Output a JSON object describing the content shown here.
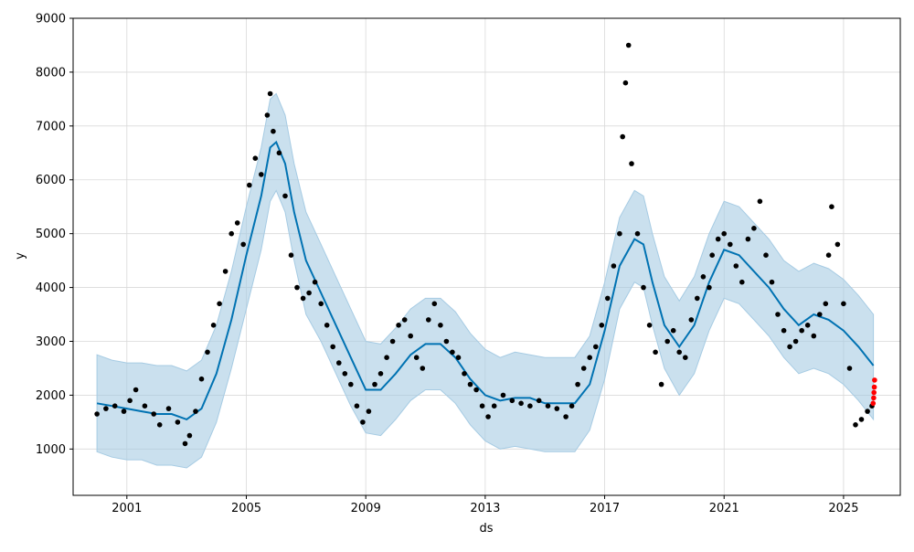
{
  "chart_data": {
    "type": "scatter",
    "title": "",
    "xlabel": "ds",
    "ylabel": "y",
    "xlim": [
      1999.2,
      2026.9
    ],
    "ylim": [
      140,
      9000
    ],
    "grid": true,
    "x_ticks": [
      2001,
      2005,
      2009,
      2013,
      2017,
      2021,
      2025
    ],
    "x_tick_labels": [
      "2001",
      "2005",
      "2009",
      "2013",
      "2017",
      "2021",
      "2025"
    ],
    "y_ticks": [
      1000,
      2000,
      3000,
      4000,
      5000,
      6000,
      7000,
      8000,
      9000
    ],
    "y_tick_labels": [
      "1000",
      "2000",
      "3000",
      "4000",
      "5000",
      "6000",
      "7000",
      "8000",
      "9000"
    ],
    "colors": {
      "observed": "#000000",
      "forecast": "#0072B2",
      "uncertainty": "#a6cbe3",
      "highlight": "#ff0000",
      "grid": "#d9d9d9"
    },
    "series": [
      {
        "role": "observed",
        "x": [
          2000.0,
          2000.3,
          2000.6,
          2000.9,
          2001.1,
          2001.3,
          2001.6,
          2001.9,
          2002.1,
          2002.4,
          2002.7,
          2002.95,
          2003.1,
          2003.3,
          2003.5,
          2003.7,
          2003.9,
          2004.1,
          2004.3,
          2004.5,
          2004.7,
          2004.9,
          2005.1,
          2005.3,
          2005.5,
          2005.7,
          2005.8,
          2005.9,
          2006.1,
          2006.3,
          2006.5,
          2006.7,
          2006.9,
          2007.1,
          2007.3,
          2007.5,
          2007.7,
          2007.9,
          2008.1,
          2008.3,
          2008.5,
          2008.7,
          2008.9,
          2009.1,
          2009.3,
          2009.5,
          2009.7,
          2009.9,
          2010.1,
          2010.3,
          2010.5,
          2010.7,
          2010.9,
          2011.1,
          2011.3,
          2011.5,
          2011.7,
          2011.9,
          2012.1,
          2012.3,
          2012.5,
          2012.7,
          2012.9,
          2013.1,
          2013.3,
          2013.6,
          2013.9,
          2014.2,
          2014.5,
          2014.8,
          2015.1,
          2015.4,
          2015.7,
          2015.9,
          2016.1,
          2016.3,
          2016.5,
          2016.7,
          2016.9,
          2017.1,
          2017.3,
          2017.5,
          2017.6,
          2017.7,
          2017.8,
          2017.9,
          2018.1,
          2018.3,
          2018.5,
          2018.7,
          2018.9,
          2019.1,
          2019.3,
          2019.5,
          2019.7,
          2019.9,
          2020.1,
          2020.3,
          2020.5,
          2020.6,
          2020.8,
          2021.0,
          2021.2,
          2021.4,
          2021.6,
          2021.8,
          2022.0,
          2022.2,
          2022.4,
          2022.6,
          2022.8,
          2023.0,
          2023.2,
          2023.4,
          2023.6,
          2023.8,
          2024.0,
          2024.2,
          2024.4,
          2024.5,
          2024.6,
          2024.8,
          2025.0,
          2025.2,
          2025.4,
          2025.6,
          2025.8,
          2025.95
        ],
        "y": [
          1650,
          1750,
          1800,
          1700,
          1900,
          2100,
          1800,
          1650,
          1450,
          1750,
          1500,
          1100,
          1250,
          1700,
          2300,
          2800,
          3300,
          3700,
          4300,
          5000,
          5200,
          4800,
          5900,
          6400,
          6100,
          7200,
          7600,
          6900,
          6500,
          5700,
          4600,
          4000,
          3800,
          3900,
          4100,
          3700,
          3300,
          2900,
          2600,
          2400,
          2200,
          1800,
          1500,
          1700,
          2200,
          2400,
          2700,
          3000,
          3300,
          3400,
          3100,
          2700,
          2500,
          3400,
          3700,
          3300,
          3000,
          2800,
          2700,
          2400,
          2200,
          2100,
          1800,
          1600,
          1800,
          2000,
          1900,
          1850,
          1800,
          1900,
          1800,
          1750,
          1600,
          1800,
          2200,
          2500,
          2700,
          2900,
          3300,
          3800,
          4400,
          5000,
          6800,
          7800,
          8500,
          6300,
          5000,
          4000,
          3300,
          2800,
          2200,
          3000,
          3200,
          2800,
          2700,
          3400,
          3800,
          4200,
          4000,
          4600,
          4900,
          5000,
          4800,
          4400,
          4100,
          4900,
          5100,
          5600,
          4600,
          4100,
          3500,
          3200,
          2900,
          3000,
          3200,
          3300,
          3100,
          3500,
          3700,
          4600,
          5500,
          4800,
          3700,
          2500,
          1450,
          1550,
          1700,
          1800
        ]
      },
      {
        "role": "highlight",
        "x": [
          2025.99,
          2026.01,
          2026.02,
          2026.03,
          2026.04
        ],
        "y": [
          1850,
          1950,
          2050,
          2150,
          2280
        ]
      },
      {
        "role": "forecast",
        "x": [
          2000.0,
          2000.5,
          2001.0,
          2001.5,
          2002.0,
          2002.5,
          2003.0,
          2003.5,
          2004.0,
          2004.5,
          2005.0,
          2005.5,
          2005.8,
          2006.0,
          2006.3,
          2006.6,
          2007.0,
          2007.5,
          2008.0,
          2008.5,
          2009.0,
          2009.5,
          2010.0,
          2010.5,
          2011.0,
          2011.5,
          2012.0,
          2012.5,
          2013.0,
          2013.5,
          2014.0,
          2014.5,
          2015.0,
          2015.5,
          2016.0,
          2016.5,
          2017.0,
          2017.5,
          2018.0,
          2018.3,
          2018.6,
          2019.0,
          2019.5,
          2020.0,
          2020.5,
          2021.0,
          2021.5,
          2022.0,
          2022.5,
          2023.0,
          2023.5,
          2024.0,
          2024.5,
          2025.0,
          2025.5,
          2026.0
        ],
        "y": [
          1850,
          1800,
          1750,
          1700,
          1650,
          1650,
          1550,
          1750,
          2400,
          3400,
          4600,
          5700,
          6600,
          6700,
          6300,
          5400,
          4500,
          3900,
          3300,
          2700,
          2100,
          2100,
          2400,
          2750,
          2950,
          2950,
          2700,
          2300,
          2000,
          1900,
          1950,
          1950,
          1850,
          1850,
          1850,
          2200,
          3200,
          4400,
          4900,
          4800,
          4100,
          3300,
          2900,
          3300,
          4100,
          4700,
          4600,
          4300,
          4000,
          3600,
          3300,
          3500,
          3400,
          3200,
          2900,
          2550
        ]
      },
      {
        "role": "uncertainty_band",
        "x": [
          2000.0,
          2000.5,
          2001.0,
          2001.5,
          2002.0,
          2002.5,
          2003.0,
          2003.5,
          2004.0,
          2004.5,
          2005.0,
          2005.5,
          2005.8,
          2006.0,
          2006.3,
          2006.6,
          2007.0,
          2007.5,
          2008.0,
          2008.5,
          2009.0,
          2009.5,
          2010.0,
          2010.5,
          2011.0,
          2011.5,
          2012.0,
          2012.5,
          2013.0,
          2013.5,
          2014.0,
          2014.5,
          2015.0,
          2015.5,
          2016.0,
          2016.5,
          2017.0,
          2017.5,
          2018.0,
          2018.3,
          2018.6,
          2019.0,
          2019.5,
          2020.0,
          2020.5,
          2021.0,
          2021.5,
          2022.0,
          2022.5,
          2023.0,
          2023.5,
          2024.0,
          2024.5,
          2025.0,
          2025.5,
          2026.0
        ],
        "lower": [
          950,
          850,
          800,
          800,
          700,
          700,
          650,
          850,
          1500,
          2500,
          3600,
          4700,
          5600,
          5800,
          5400,
          4500,
          3500,
          3000,
          2400,
          1800,
          1300,
          1250,
          1550,
          1900,
          2100,
          2100,
          1850,
          1450,
          1150,
          1000,
          1050,
          1000,
          950,
          950,
          950,
          1350,
          2300,
          3600,
          4100,
          4000,
          3300,
          2500,
          2000,
          2400,
          3200,
          3800,
          3700,
          3400,
          3100,
          2700,
          2400,
          2500,
          2400,
          2200,
          1900,
          1550
        ],
        "upper": [
          2750,
          2650,
          2600,
          2600,
          2550,
          2550,
          2450,
          2650,
          3300,
          4300,
          5500,
          6600,
          7500,
          7600,
          7200,
          6300,
          5400,
          4800,
          4200,
          3600,
          3000,
          2950,
          3250,
          3600,
          3800,
          3800,
          3550,
          3150,
          2850,
          2700,
          2800,
          2750,
          2700,
          2700,
          2700,
          3100,
          4100,
          5300,
          5800,
          5700,
          5000,
          4200,
          3750,
          4200,
          5000,
          5600,
          5500,
          5200,
          4900,
          4500,
          4300,
          4450,
          4350,
          4150,
          3850,
          3500
        ]
      }
    ]
  }
}
